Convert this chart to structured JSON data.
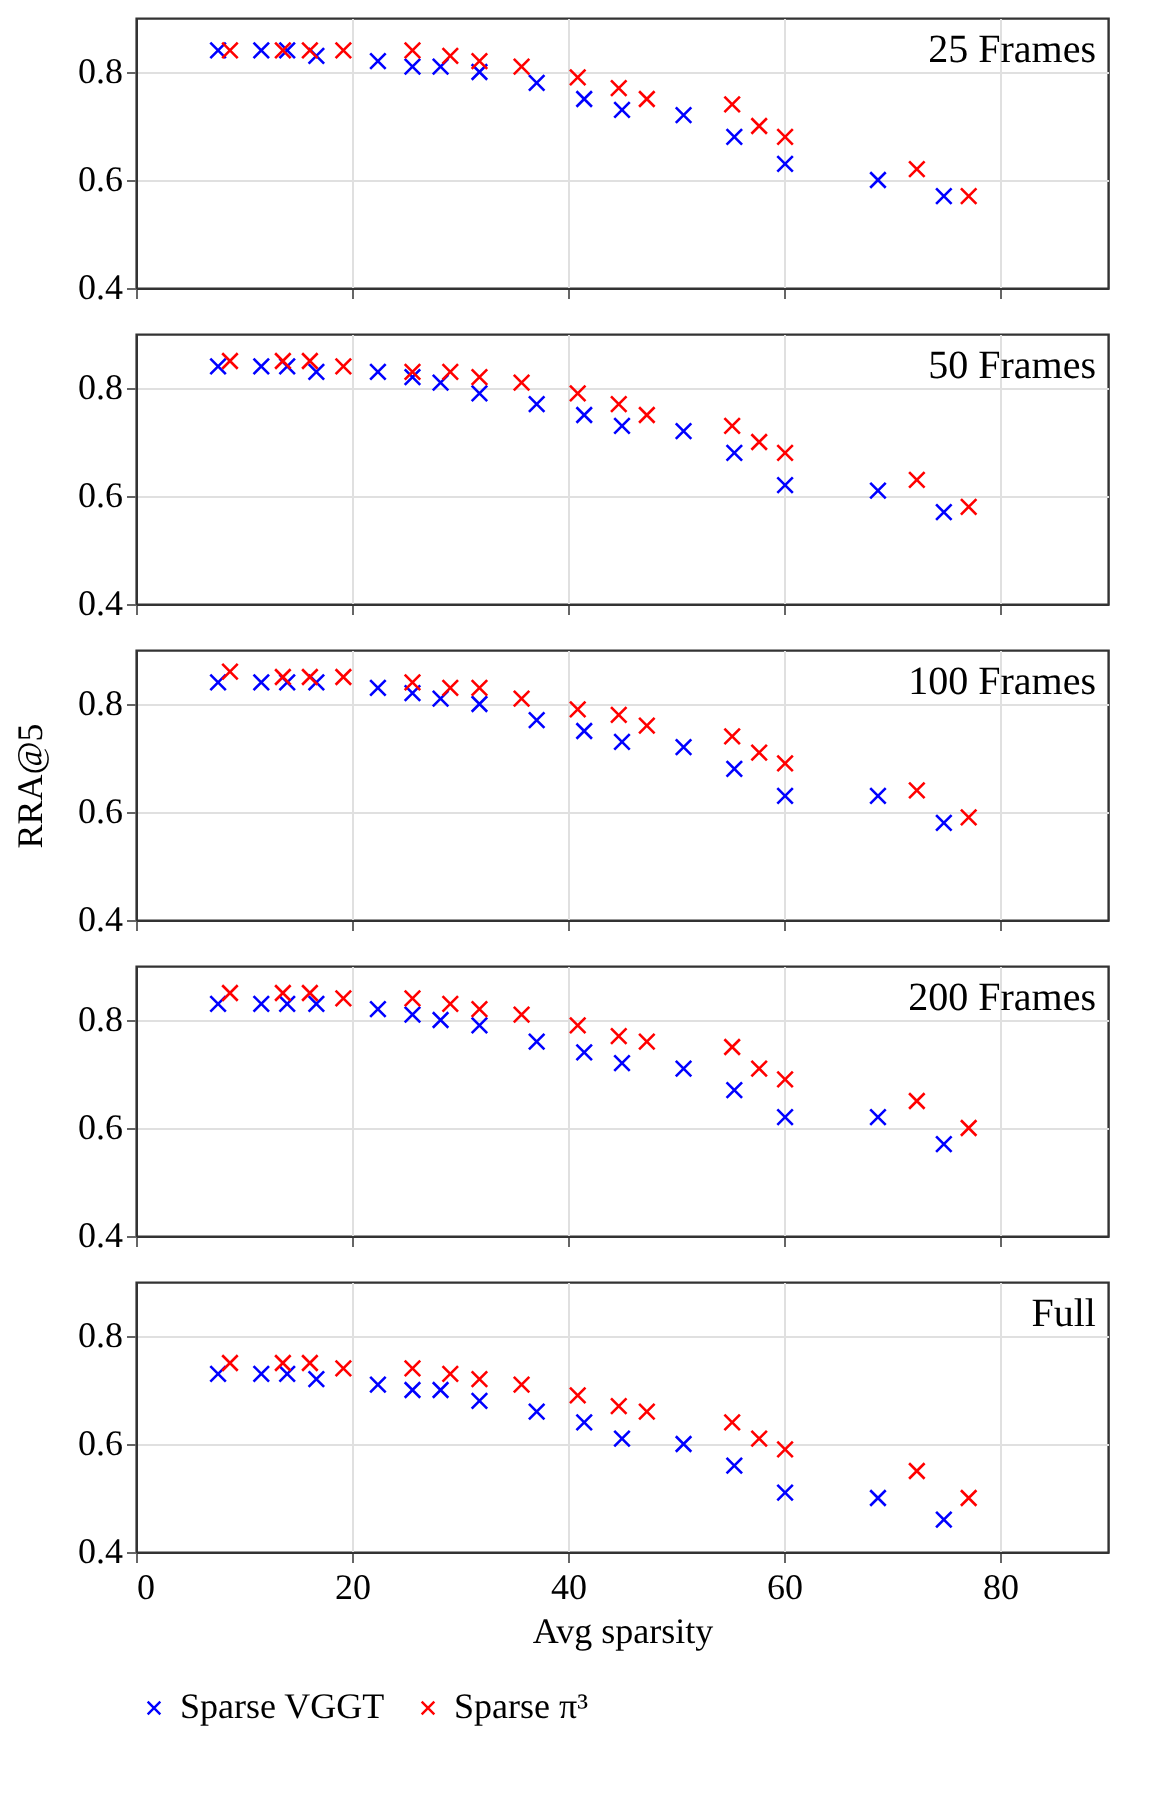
{
  "chart_data": [
    {
      "type": "scatter",
      "annotations": [
        "25 Frames"
      ],
      "xlim": [
        0,
        90
      ],
      "xticks": [
        0,
        20,
        40,
        60,
        80
      ],
      "ylim": [
        0.4,
        0.9
      ],
      "yticks": [
        0.4,
        0.6,
        0.8
      ],
      "grid": true,
      "marker": "cross",
      "tick_labels": "y",
      "series": [
        {
          "color": "#0000ff",
          "x": [
            7.6,
            11.6,
            14.0,
            16.7,
            22.4,
            25.6,
            28.2,
            31.8,
            37.1,
            41.5,
            45.0,
            50.7,
            55.4,
            60.1,
            68.7,
            74.8
          ],
          "values": [
            0.84,
            0.84,
            0.84,
            0.83,
            0.82,
            0.81,
            0.81,
            0.8,
            0.78,
            0.75,
            0.73,
            0.72,
            0.68,
            0.63,
            0.6,
            0.57
          ]
        },
        {
          "color": "#ff0000",
          "x": [
            8.7,
            13.6,
            16.1,
            19.2,
            25.6,
            29.1,
            31.8,
            35.7,
            40.9,
            44.7,
            47.3,
            55.2,
            57.7,
            60.1,
            72.3,
            77.1
          ],
          "values": [
            0.84,
            0.84,
            0.84,
            0.84,
            0.84,
            0.83,
            0.82,
            0.81,
            0.79,
            0.77,
            0.75,
            0.74,
            0.7,
            0.68,
            0.62,
            0.57
          ]
        }
      ]
    },
    {
      "type": "scatter",
      "annotations": [
        "50 Frames"
      ],
      "xlim": [
        0,
        90
      ],
      "xticks": [
        0,
        20,
        40,
        60,
        80
      ],
      "ylim": [
        0.4,
        0.9
      ],
      "yticks": [
        0.4,
        0.6,
        0.8
      ],
      "grid": true,
      "marker": "cross",
      "tick_labels": "y",
      "series": [
        {
          "color": "#0000ff",
          "x": [
            7.6,
            11.6,
            14.0,
            16.7,
            22.4,
            25.6,
            28.2,
            31.8,
            37.1,
            41.5,
            45.0,
            50.7,
            55.4,
            60.1,
            68.7,
            74.8
          ],
          "values": [
            0.84,
            0.84,
            0.84,
            0.83,
            0.83,
            0.82,
            0.81,
            0.79,
            0.77,
            0.75,
            0.73,
            0.72,
            0.68,
            0.62,
            0.61,
            0.57
          ]
        },
        {
          "color": "#ff0000",
          "x": [
            8.7,
            13.6,
            16.1,
            19.2,
            25.6,
            29.1,
            31.8,
            35.7,
            40.9,
            44.7,
            47.3,
            55.2,
            57.7,
            60.1,
            72.3,
            77.1
          ],
          "values": [
            0.85,
            0.85,
            0.85,
            0.84,
            0.83,
            0.83,
            0.82,
            0.81,
            0.79,
            0.77,
            0.75,
            0.73,
            0.7,
            0.68,
            0.63,
            0.58
          ]
        }
      ]
    },
    {
      "type": "scatter",
      "annotations": [
        "100 Frames"
      ],
      "ylabel": "RRA@5",
      "xlim": [
        0,
        90
      ],
      "xticks": [
        0,
        20,
        40,
        60,
        80
      ],
      "ylim": [
        0.4,
        0.9
      ],
      "yticks": [
        0.4,
        0.6,
        0.8
      ],
      "grid": true,
      "marker": "cross",
      "tick_labels": "y",
      "series": [
        {
          "color": "#0000ff",
          "x": [
            7.6,
            11.6,
            14.0,
            16.7,
            22.4,
            25.6,
            28.2,
            31.8,
            37.1,
            41.5,
            45.0,
            50.7,
            55.4,
            60.1,
            68.7,
            74.8
          ],
          "values": [
            0.84,
            0.84,
            0.84,
            0.84,
            0.83,
            0.82,
            0.81,
            0.8,
            0.77,
            0.75,
            0.73,
            0.72,
            0.68,
            0.63,
            0.63,
            0.58
          ]
        },
        {
          "color": "#ff0000",
          "x": [
            8.7,
            13.6,
            16.1,
            19.2,
            25.6,
            29.1,
            31.8,
            35.7,
            40.9,
            44.7,
            47.3,
            55.2,
            57.7,
            60.1,
            72.3,
            77.1
          ],
          "values": [
            0.86,
            0.85,
            0.85,
            0.85,
            0.84,
            0.83,
            0.83,
            0.81,
            0.79,
            0.78,
            0.76,
            0.74,
            0.71,
            0.69,
            0.64,
            0.59
          ]
        }
      ]
    },
    {
      "type": "scatter",
      "annotations": [
        "200 Frames"
      ],
      "xlim": [
        0,
        90
      ],
      "xticks": [
        0,
        20,
        40,
        60,
        80
      ],
      "ylim": [
        0.4,
        0.9
      ],
      "yticks": [
        0.4,
        0.6,
        0.8
      ],
      "grid": true,
      "marker": "cross",
      "tick_labels": "y",
      "series": [
        {
          "color": "#0000ff",
          "x": [
            7.6,
            11.6,
            14.0,
            16.7,
            22.4,
            25.6,
            28.2,
            31.8,
            37.1,
            41.5,
            45.0,
            50.7,
            55.4,
            60.1,
            68.7,
            74.8
          ],
          "values": [
            0.83,
            0.83,
            0.83,
            0.83,
            0.82,
            0.81,
            0.8,
            0.79,
            0.76,
            0.74,
            0.72,
            0.71,
            0.67,
            0.62,
            0.62,
            0.57
          ]
        },
        {
          "color": "#ff0000",
          "x": [
            8.7,
            13.6,
            16.1,
            19.2,
            25.6,
            29.1,
            31.8,
            35.7,
            40.9,
            44.7,
            47.3,
            55.2,
            57.7,
            60.1,
            72.3,
            77.1
          ],
          "values": [
            0.85,
            0.85,
            0.85,
            0.84,
            0.84,
            0.83,
            0.82,
            0.81,
            0.79,
            0.77,
            0.76,
            0.75,
            0.71,
            0.69,
            0.65,
            0.6
          ]
        }
      ]
    },
    {
      "type": "scatter",
      "annotations": [
        "Full"
      ],
      "xlabel": "Avg sparsity",
      "xlim": [
        0,
        90
      ],
      "xticks": [
        0,
        20,
        40,
        60,
        80
      ],
      "ylim": [
        0.4,
        0.9
      ],
      "yticks": [
        0.4,
        0.6,
        0.8
      ],
      "grid": true,
      "marker": "cross",
      "legend": "bottom",
      "series": [
        {
          "name": "Sparse VGGT",
          "color": "#0000ff",
          "x": [
            7.6,
            11.6,
            14.0,
            16.7,
            22.4,
            25.6,
            28.2,
            31.8,
            37.1,
            41.5,
            45.0,
            50.7,
            55.4,
            60.1,
            68.7,
            74.8
          ],
          "values": [
            0.73,
            0.73,
            0.73,
            0.72,
            0.71,
            0.7,
            0.7,
            0.68,
            0.66,
            0.64,
            0.61,
            0.6,
            0.56,
            0.51,
            0.5,
            0.46
          ]
        },
        {
          "name": "Sparse π³",
          "color": "#ff0000",
          "x": [
            8.7,
            13.6,
            16.1,
            19.2,
            25.6,
            29.1,
            31.8,
            35.7,
            40.9,
            44.7,
            47.3,
            55.2,
            57.7,
            60.1,
            72.3,
            77.1
          ],
          "values": [
            0.75,
            0.75,
            0.75,
            0.74,
            0.74,
            0.73,
            0.72,
            0.71,
            0.69,
            0.67,
            0.66,
            0.64,
            0.61,
            0.59,
            0.55,
            0.5
          ]
        }
      ]
    }
  ]
}
